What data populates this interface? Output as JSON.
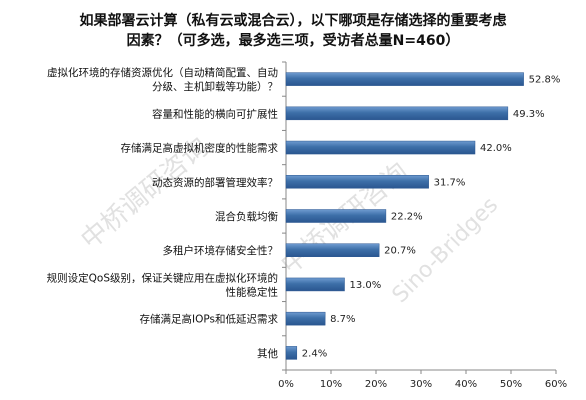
{
  "chart_data": {
    "type": "bar",
    "orientation": "horizontal",
    "title_lines": [
      "如果部署云计算（私有云或混合云），以下哪项是存储选择的重要考虑",
      "因素？（可多选，最多选三项，受访者总量N=460）"
    ],
    "categories": [
      [
        "虚拟化环境的存储资源优化（自动精简配置、自动",
        "分级、主机卸载等功能）？"
      ],
      [
        "容量和性能的横向可扩展性"
      ],
      [
        "存储满足高虚拟机密度的性能需求"
      ],
      [
        "动态资源的部署管理效率？"
      ],
      [
        "混合负载均衡"
      ],
      [
        "多租户环境存储安全性？"
      ],
      [
        "规则设定QoS级别，保证关键应用在虚拟化环境的",
        "性能稳定性"
      ],
      [
        "存储满足高IOPs和低延迟需求"
      ],
      [
        "其他"
      ]
    ],
    "values": [
      52.8,
      49.3,
      42.0,
      31.7,
      22.2,
      20.7,
      13.0,
      8.7,
      2.4
    ],
    "value_labels": [
      "52.8%",
      "49.3%",
      "42.0%",
      "31.7%",
      "22.2%",
      "20.7%",
      "13.0%",
      "8.7%",
      "2.4%"
    ],
    "xlim": [
      0,
      60
    ],
    "xticks": [
      0,
      10,
      20,
      30,
      40,
      50,
      60
    ],
    "xtick_labels": [
      "0%",
      "10%",
      "20%",
      "30%",
      "40%",
      "50%",
      "60%"
    ],
    "grid": false,
    "legend": "none",
    "bar_color": "#3d6fa8",
    "watermark_text": [
      "中桥调研咨询",
      "中桥调研咨询",
      "Sino-Bridges"
    ]
  }
}
